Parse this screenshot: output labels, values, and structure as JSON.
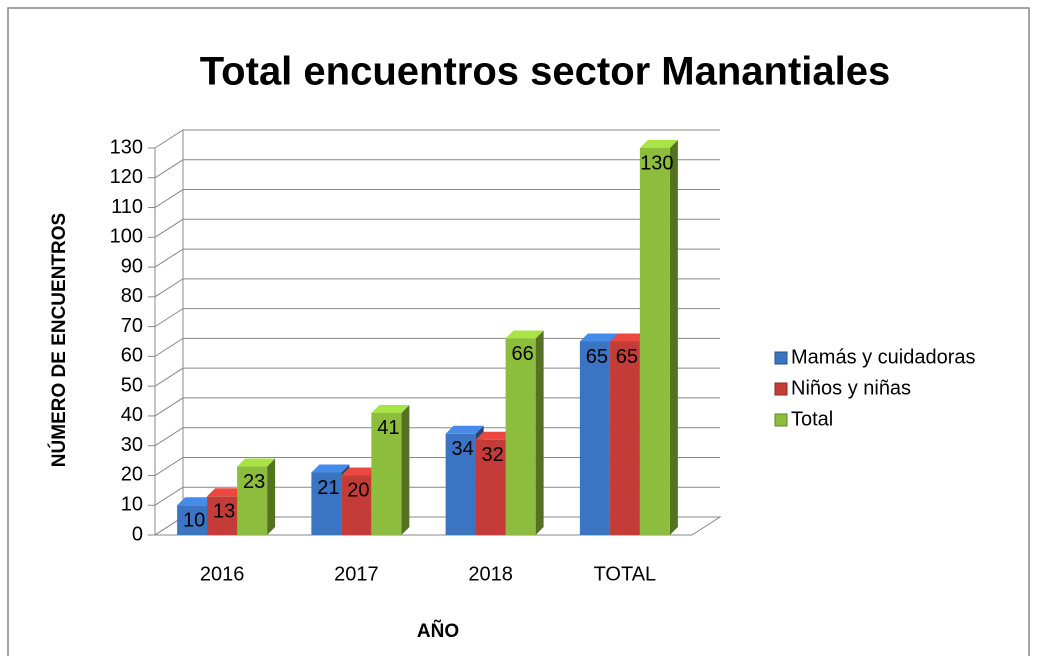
{
  "chart_data": {
    "type": "bar3d",
    "title": "Total encuentros sector Manantiales",
    "x_label": "AÑO",
    "y_label": "NÚMERO DE ENCUENTROS",
    "categories": [
      "2016",
      "2017",
      "2018",
      "TOTAL"
    ],
    "series": [
      {
        "name": "Mamás y cuidadoras",
        "color": "#3b74c2",
        "values": [
          10,
          21,
          34,
          65
        ]
      },
      {
        "name": "Niños y niñas",
        "color": "#c43c37",
        "values": [
          13,
          20,
          32,
          65
        ]
      },
      {
        "name": "Total",
        "color": "#8cbd3c",
        "values": [
          23,
          41,
          66,
          130
        ]
      }
    ],
    "ylim": [
      0,
      130
    ],
    "yticks": [
      0,
      10,
      20,
      30,
      40,
      50,
      60,
      70,
      80,
      90,
      100,
      110,
      120,
      130
    ],
    "grid": true,
    "legend": "right"
  }
}
